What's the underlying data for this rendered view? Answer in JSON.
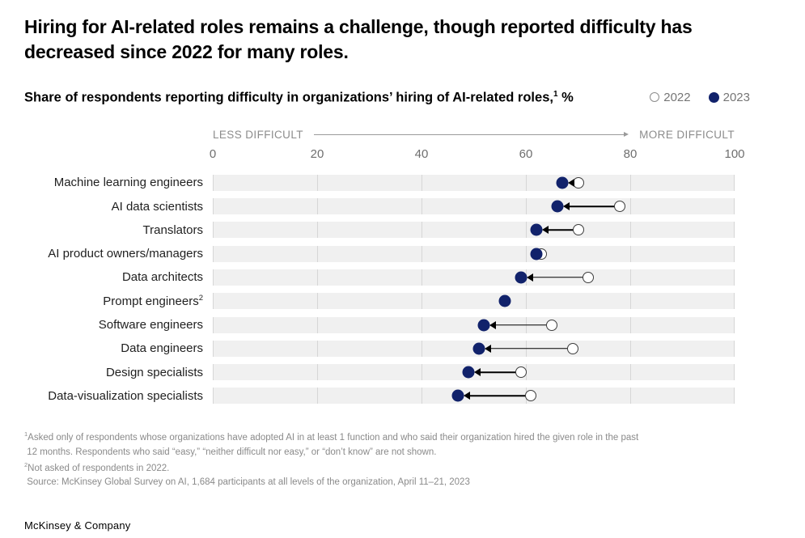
{
  "title": "Hiring for AI-related roles remains a challenge, though reported difficulty has decreased since 2022 for many roles.",
  "subtitle": {
    "text": "Share of respondents reporting difficulty in organizations’ hiring of AI-related roles,",
    "footnote_marker": "1",
    "unit_suffix": " %"
  },
  "legend": {
    "items": [
      {
        "label": "2022",
        "style": "open"
      },
      {
        "label": "2023",
        "style": "filled"
      }
    ]
  },
  "axis": {
    "left_label": "LESS DIFFICULT",
    "right_label": "MORE DIFFICULT"
  },
  "chart_data": {
    "type": "dumbbell-dot",
    "unit": "%",
    "title": "Share of respondents reporting difficulty in organizations’ hiring of AI-related roles, %",
    "xlim": [
      0,
      100
    ],
    "ticks": [
      0,
      20,
      40,
      60,
      80,
      100
    ],
    "grid": "vertical-in-bands",
    "legend_position": "top-right",
    "direction_labels": {
      "left": "LESS DIFFICULT",
      "right": "MORE DIFFICULT"
    },
    "categories": [
      "Machine learning engineers",
      "AI data scientists",
      "Translators",
      "AI product owners/managers",
      "Data architects",
      "Prompt engineers",
      "Software engineers",
      "Data engineers",
      "Design specialists",
      "Data-visualization specialists"
    ],
    "category_footnotes": [
      "",
      "",
      "",
      "",
      "",
      "2",
      "",
      "",
      "",
      ""
    ],
    "series": [
      {
        "name": "2022",
        "marker": "open-circle",
        "values": [
          70,
          78,
          70,
          63,
          72,
          null,
          65,
          69,
          59,
          61
        ]
      },
      {
        "name": "2023",
        "marker": "filled-circle",
        "values": [
          67,
          66,
          62,
          62,
          59,
          56,
          52,
          51,
          49,
          47
        ]
      }
    ]
  },
  "footnotes": [
    {
      "sup": "1",
      "text": "Asked only of respondents whose organizations have adopted AI in at least 1 function and who said their organization hired the given role in the past"
    },
    {
      "sup": "",
      "text": " 12 months. Respondents who said “easy,” “neither difficult nor easy,” or “don’t know” are not shown."
    },
    {
      "sup": "2",
      "text": "Not asked of respondents in 2022."
    },
    {
      "sup": "",
      "text": " Source: McKinsey Global Survey on AI, 1,684 participants at all levels of the organization, April 11–21, 2023"
    }
  ],
  "brand": "McKinsey & Company",
  "colors": {
    "accent_navy": "#11226B",
    "band": "#F0F0F0",
    "gridline": "#D6D6D6",
    "muted_text": "#757575",
    "arrow": "#000000"
  }
}
